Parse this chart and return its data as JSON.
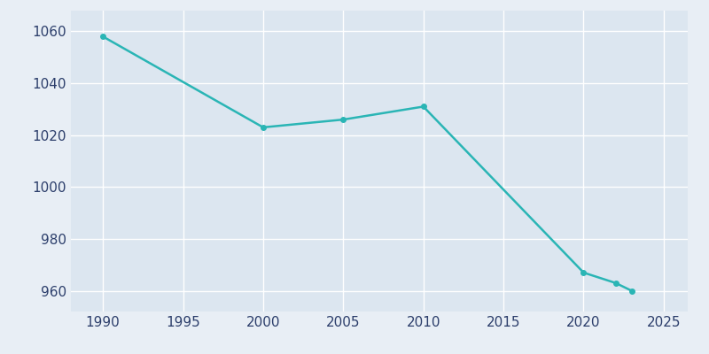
{
  "years": [
    1990,
    2000,
    2005,
    2010,
    2020,
    2022,
    2023
  ],
  "population": [
    1058,
    1023,
    1026,
    1031,
    967,
    963,
    960
  ],
  "line_color": "#2ab5b5",
  "marker_color": "#2ab5b5",
  "background_color": "#e8eef5",
  "plot_bg_color": "#dce6f0",
  "grid_color": "#ffffff",
  "xlim": [
    1988,
    2026.5
  ],
  "ylim": [
    952,
    1068
  ],
  "xticks": [
    1990,
    1995,
    2000,
    2005,
    2010,
    2015,
    2020,
    2025
  ],
  "yticks": [
    960,
    980,
    1000,
    1020,
    1040,
    1060
  ],
  "tick_label_color": "#2c3e6b",
  "linewidth": 1.8,
  "markersize": 4
}
